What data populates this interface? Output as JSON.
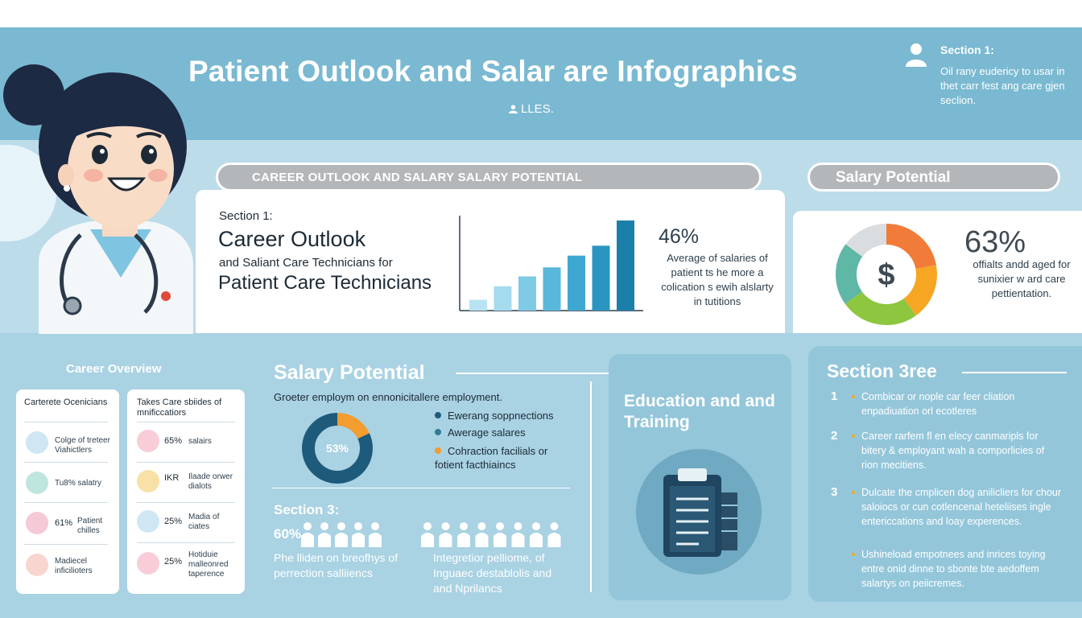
{
  "header": {
    "title": "Patient Outlook and Salar are Infographics",
    "subtitle": "LLES.",
    "section_label": "Section 1:",
    "section_text": "Oil rany eudericy to usar in thet carr fest ang care gjen seclion."
  },
  "banner": {
    "left_pill": "CAREER OUTLOOK AND SALARY SALARY POTENTIAL",
    "right_pill": "Salary Potential"
  },
  "section1": {
    "label": "Section 1:",
    "heading": "Career Outlook",
    "subheading": "and Saliant Care Technicians for",
    "heading2": "Patient Care Technicians",
    "stat_value": "46%",
    "stat_text": "Average of salaries of patient ts he more a colication s ewih alslarty in tutitions"
  },
  "salary_panel": {
    "donut_label": "$",
    "stat_value": "63%",
    "stat_text": "offialts andd aged for sunixier w ard care pettientation."
  },
  "career_overview": {
    "title": "Career Overview",
    "col_a": {
      "heading": "Carterete Ocenicians",
      "rows": [
        {
          "strong": "",
          "text": "Colge of treteer Viahictlers"
        },
        {
          "strong": "",
          "text": "Tu8% salatry"
        },
        {
          "strong": "61%",
          "text": "Patient chilles"
        },
        {
          "strong": "",
          "text": "Madiecel inficilioters"
        }
      ]
    },
    "col_b": {
      "heading": "Takes Care sbiides of mnificcatiors",
      "rows": [
        {
          "strong": "65%",
          "text": "salairs"
        },
        {
          "strong": "IKR",
          "text": "Ilaade orwer dialots"
        },
        {
          "strong": "25%",
          "text": "Madia of ciates"
        },
        {
          "strong": "25%",
          "text": "Hotiduie malleonred taperence"
        }
      ]
    }
  },
  "salary_potential": {
    "title": "Salary Potential",
    "subtitle": "Groeter employm on ennonicitallere employment.",
    "donut_label": "53%",
    "legend": [
      {
        "label": "Ewerang soppnections",
        "color": "#1e5a7a"
      },
      {
        "label": "Awerage salares",
        "color": "#2f7b9a"
      },
      {
        "label": "Cohraction facilials or fotient facthiaincs",
        "color": "#f39c2f"
      }
    ],
    "section3_title": "Section 3:",
    "section3_pct": "60%",
    "section3_left": "Phe lliden on breofhys of perrection salliiencs",
    "section3_right": "Integretior pelliome, of Inguaec destablolis and and Nprilancs"
  },
  "education": {
    "title": "Education and and Training"
  },
  "section_three": {
    "title": "Section 3ree",
    "items": [
      {
        "num": "1",
        "text": "Combicar or nople car feer cliation enpadiuation orl ecotleres"
      },
      {
        "num": "2",
        "text": "Career rarfem fl en elecy canmaripls for bitery & employant wah a comporlicies of rion mecitiens."
      },
      {
        "num": "3",
        "text": "Dulcate the cmplicen dog anilicliers for chour saloiocs or cun cotlencenal heteliises ingle entericcations and loay experences."
      },
      {
        "num": "",
        "text": "Ushineload empotnees and inrices toying entre onid dinne to sbonte bte aedoffem salartys on peiicremes."
      }
    ]
  },
  "colors": {
    "header_bg": "#7ab9d1",
    "accent_orange": "#f39c2f",
    "bar_blue": "#2b8fb5"
  },
  "chart_data": [
    {
      "type": "bar",
      "title": "",
      "categories": [
        "1",
        "2",
        "3",
        "4",
        "5",
        "6",
        "7"
      ],
      "values": [
        12,
        27,
        38,
        48,
        61,
        72,
        100
      ],
      "ylim": [
        0,
        100
      ]
    },
    {
      "type": "pie",
      "title": "",
      "values": [
        22,
        18,
        25,
        20,
        15
      ],
      "colors": [
        "#f17c3a",
        "#f6a623",
        "#8dc63f",
        "#5fb7a6",
        "#d9dde0"
      ]
    },
    {
      "type": "pie",
      "title": "",
      "values": [
        18,
        82
      ],
      "colors": [
        "#f39c2f",
        "#1e5a7a"
      ]
    }
  ]
}
